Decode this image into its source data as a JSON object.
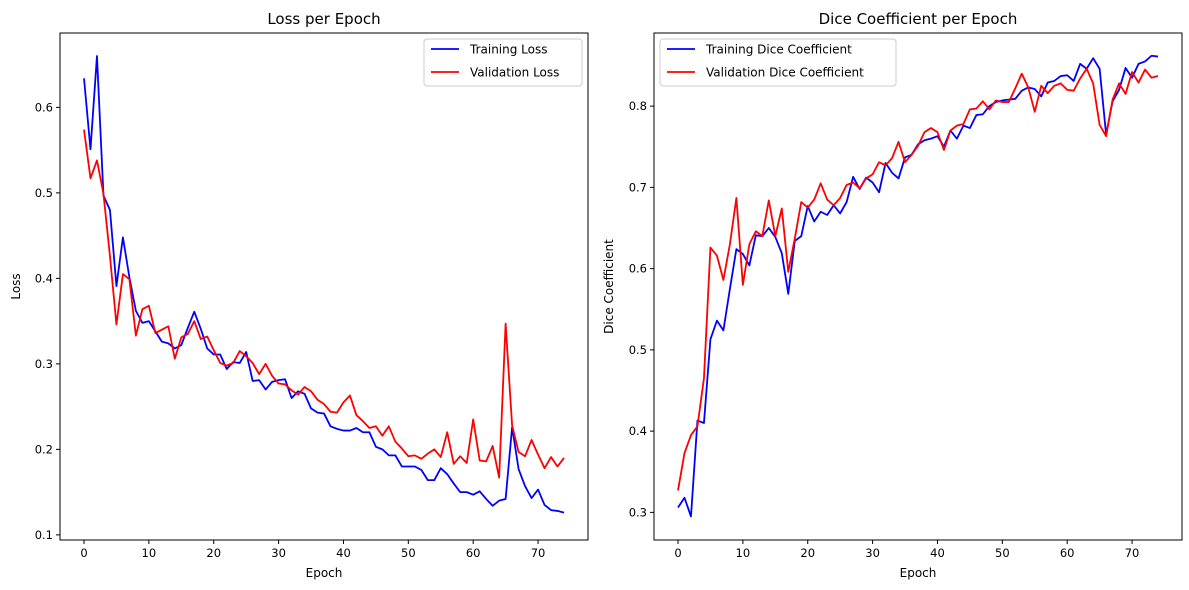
{
  "chart_data": [
    {
      "type": "line",
      "title": "Loss per Epoch",
      "xlabel": "Epoch",
      "ylabel": "Loss",
      "xlim": [
        -3.7,
        77.7
      ],
      "ylim": [
        0.094,
        0.687
      ],
      "xticks": [
        0,
        10,
        20,
        30,
        40,
        50,
        60,
        70
      ],
      "yticks": [
        0.1,
        0.2,
        0.3,
        0.4,
        0.5,
        0.6
      ],
      "ytick_labels": [
        "0.1",
        "0.2",
        "0.3",
        "0.4",
        "0.5",
        "0.6"
      ],
      "grid": false,
      "legend_position": "top-right",
      "series": [
        {
          "name": "Training Loss",
          "color": "#0000ff",
          "values": [
            0.634,
            0.551,
            0.66,
            0.497,
            0.48,
            0.391,
            0.448,
            0.401,
            0.362,
            0.348,
            0.35,
            0.338,
            0.326,
            0.324,
            0.318,
            0.322,
            0.342,
            0.361,
            0.341,
            0.318,
            0.311,
            0.311,
            0.294,
            0.302,
            0.301,
            0.314,
            0.28,
            0.281,
            0.27,
            0.279,
            0.281,
            0.282,
            0.26,
            0.268,
            0.265,
            0.248,
            0.243,
            0.242,
            0.227,
            0.224,
            0.222,
            0.222,
            0.225,
            0.22,
            0.22,
            0.203,
            0.2,
            0.193,
            0.193,
            0.18,
            0.18,
            0.18,
            0.176,
            0.164,
            0.164,
            0.178,
            0.171,
            0.16,
            0.15,
            0.15,
            0.147,
            0.151,
            0.142,
            0.134,
            0.14,
            0.142,
            0.226,
            0.177,
            0.157,
            0.143,
            0.153,
            0.135,
            0.129,
            0.128,
            0.126
          ]
        },
        {
          "name": "Validation Loss",
          "color": "#ff0000",
          "values": [
            0.574,
            0.517,
            0.538,
            0.499,
            0.426,
            0.346,
            0.405,
            0.399,
            0.333,
            0.364,
            0.368,
            0.336,
            0.34,
            0.344,
            0.306,
            0.331,
            0.335,
            0.35,
            0.329,
            0.332,
            0.316,
            0.301,
            0.298,
            0.301,
            0.315,
            0.309,
            0.301,
            0.288,
            0.3,
            0.286,
            0.277,
            0.276,
            0.269,
            0.264,
            0.273,
            0.268,
            0.258,
            0.253,
            0.244,
            0.243,
            0.255,
            0.263,
            0.24,
            0.233,
            0.225,
            0.227,
            0.216,
            0.227,
            0.209,
            0.201,
            0.192,
            0.193,
            0.189,
            0.195,
            0.2,
            0.191,
            0.22,
            0.183,
            0.192,
            0.184,
            0.235,
            0.187,
            0.186,
            0.204,
            0.167,
            0.347,
            0.228,
            0.197,
            0.192,
            0.211,
            0.194,
            0.178,
            0.191,
            0.18,
            0.19
          ]
        }
      ]
    },
    {
      "type": "line",
      "title": "Dice Coefficient per Epoch",
      "xlabel": "Epoch",
      "ylabel": "Dice Coefficient",
      "xlim": [
        -3.7,
        77.7
      ],
      "ylim": [
        0.266,
        0.89
      ],
      "xticks": [
        0,
        10,
        20,
        30,
        40,
        50,
        60,
        70
      ],
      "yticks": [
        0.3,
        0.4,
        0.5,
        0.6,
        0.7,
        0.8
      ],
      "ytick_labels": [
        "0.3",
        "0.4",
        "0.5",
        "0.6",
        "0.7",
        "0.8"
      ],
      "grid": false,
      "legend_position": "top-left",
      "series": [
        {
          "name": "Training Dice Coefficient",
          "color": "#0000ff",
          "values": [
            0.306,
            0.318,
            0.295,
            0.413,
            0.41,
            0.513,
            0.536,
            0.524,
            0.575,
            0.624,
            0.618,
            0.604,
            0.641,
            0.64,
            0.65,
            0.639,
            0.619,
            0.569,
            0.634,
            0.64,
            0.677,
            0.658,
            0.67,
            0.666,
            0.678,
            0.668,
            0.682,
            0.713,
            0.698,
            0.712,
            0.706,
            0.694,
            0.73,
            0.718,
            0.711,
            0.737,
            0.74,
            0.753,
            0.758,
            0.76,
            0.763,
            0.75,
            0.77,
            0.76,
            0.776,
            0.773,
            0.789,
            0.79,
            0.8,
            0.805,
            0.807,
            0.808,
            0.809,
            0.819,
            0.823,
            0.821,
            0.812,
            0.829,
            0.831,
            0.837,
            0.838,
            0.831,
            0.852,
            0.846,
            0.859,
            0.846,
            0.765,
            0.806,
            0.82,
            0.847,
            0.835,
            0.852,
            0.855,
            0.862,
            0.861
          ]
        },
        {
          "name": "Validation Dice Coefficient",
          "color": "#ff0000",
          "values": [
            0.327,
            0.373,
            0.395,
            0.406,
            0.465,
            0.626,
            0.616,
            0.586,
            0.63,
            0.687,
            0.58,
            0.63,
            0.646,
            0.64,
            0.684,
            0.64,
            0.674,
            0.596,
            0.637,
            0.682,
            0.675,
            0.685,
            0.705,
            0.685,
            0.678,
            0.687,
            0.703,
            0.706,
            0.699,
            0.711,
            0.716,
            0.731,
            0.727,
            0.736,
            0.756,
            0.731,
            0.74,
            0.751,
            0.768,
            0.773,
            0.768,
            0.746,
            0.77,
            0.776,
            0.778,
            0.796,
            0.797,
            0.806,
            0.796,
            0.807,
            0.805,
            0.805,
            0.822,
            0.84,
            0.823,
            0.793,
            0.825,
            0.816,
            0.825,
            0.828,
            0.82,
            0.819,
            0.834,
            0.846,
            0.828,
            0.777,
            0.763,
            0.808,
            0.828,
            0.815,
            0.842,
            0.829,
            0.845,
            0.835,
            0.837
          ]
        }
      ]
    }
  ]
}
